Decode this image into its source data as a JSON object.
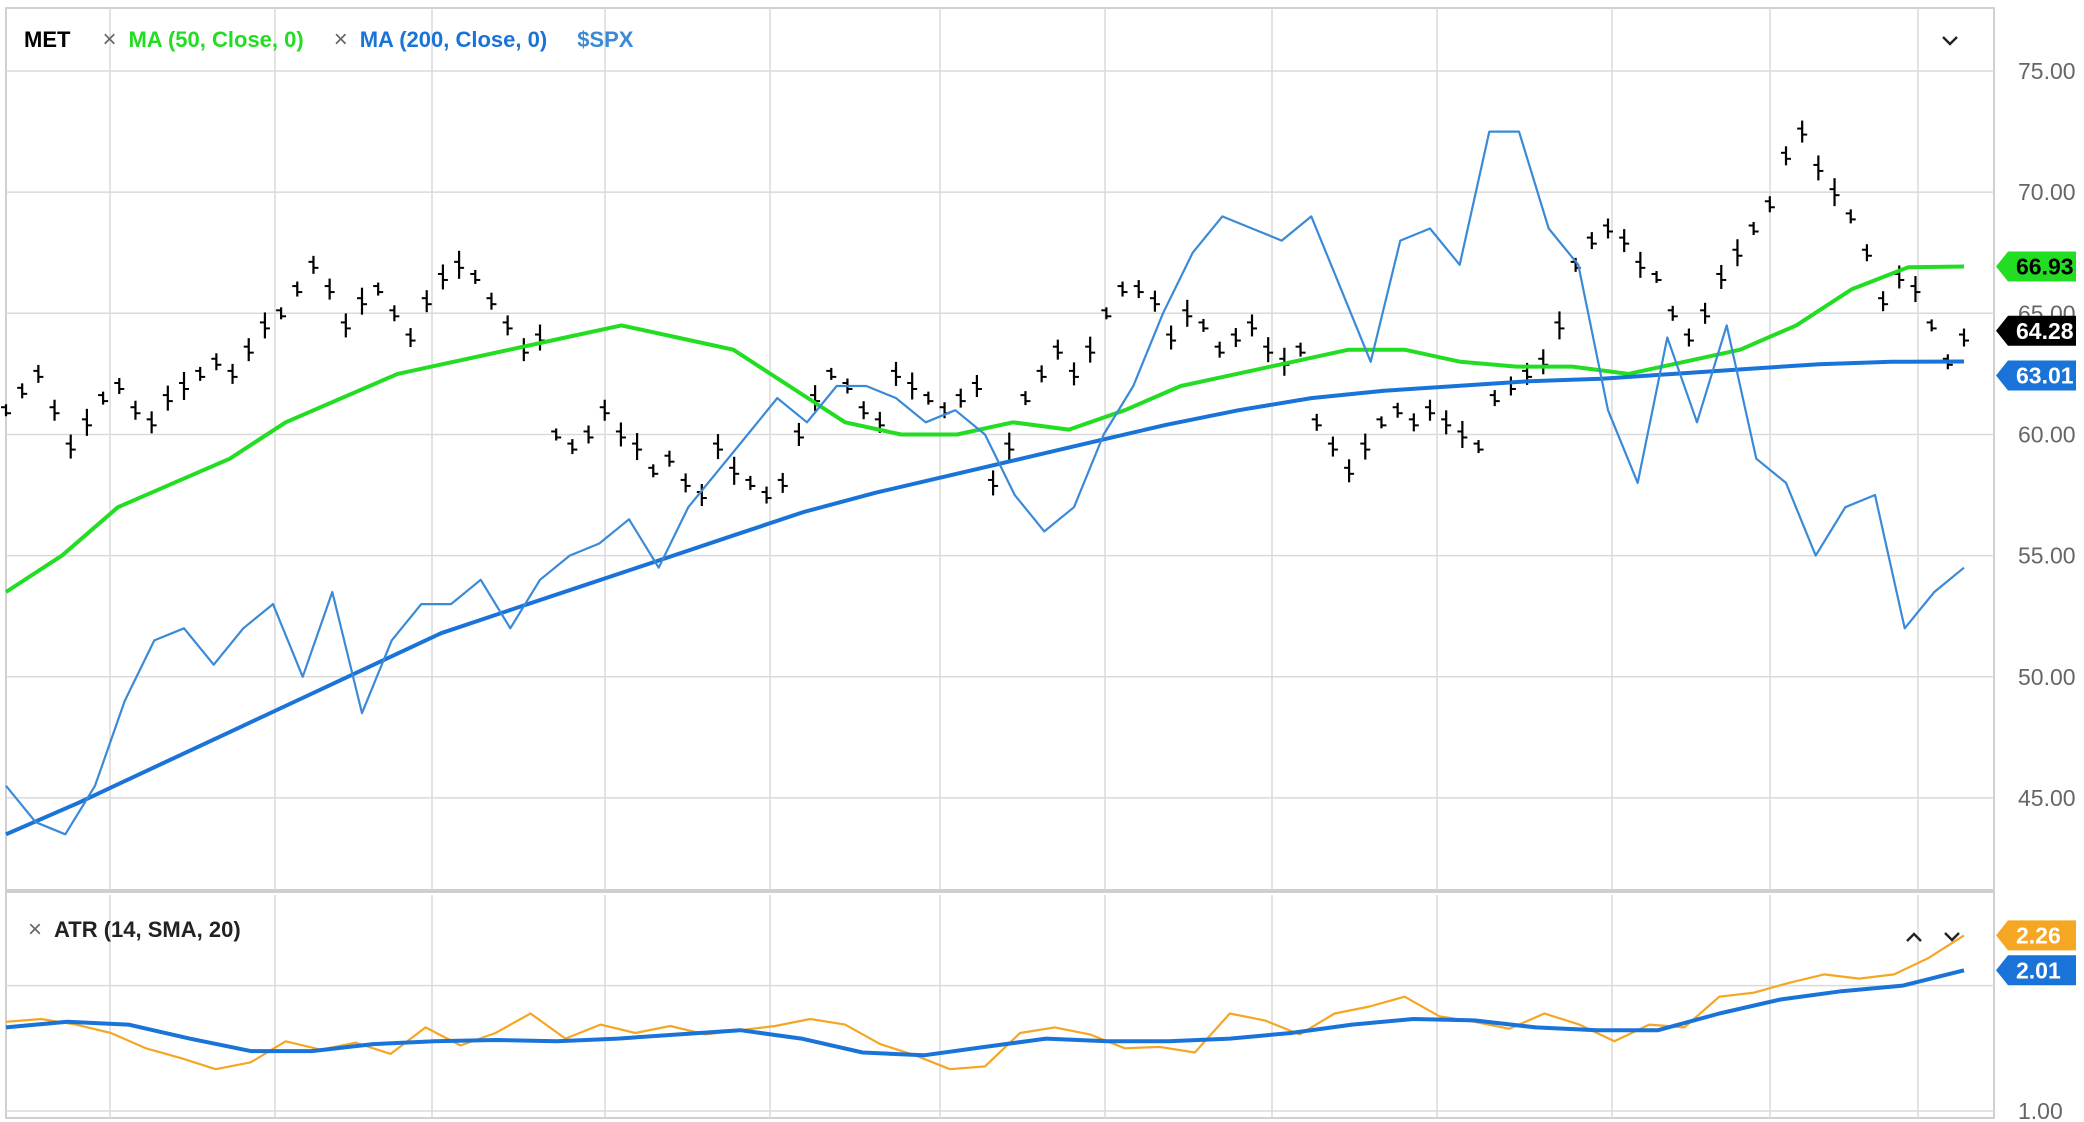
{
  "main_panel": {
    "symbol": "MET",
    "indicators": [
      {
        "label": "MA (50, Close, 0)",
        "color": "#22dd22"
      },
      {
        "label": "MA (200, Close, 0)",
        "color": "#1a73d8"
      },
      {
        "label": "$SPX",
        "color": "#3a8ad8"
      }
    ],
    "collapse_icon": "chevron-down-icon"
  },
  "lower_panel": {
    "indicator": "ATR (14, SMA, 20)",
    "icons": [
      "chevron-up-icon",
      "chevron-down-icon"
    ]
  },
  "chart_data": [
    {
      "type": "ohlc",
      "title": "MET",
      "y_ticks": [
        "75.00",
        "70.00",
        "65.00",
        "60.00",
        "55.00",
        "50.00",
        "45.00"
      ],
      "ylim": [
        41.2,
        77.6
      ],
      "grid": true,
      "series": [
        {
          "name": "MET",
          "color": "#000000",
          "values": [
            61.0,
            61.8,
            62.5,
            61.0,
            59.5,
            60.5,
            61.5,
            62.0,
            61.0,
            60.5,
            61.5,
            62.0,
            62.5,
            63.0,
            62.5,
            63.5,
            64.5,
            65.0,
            66.0,
            67.0,
            66.0,
            64.5,
            65.5,
            66.0,
            65.0,
            64.0,
            65.5,
            66.5,
            67.0,
            66.5,
            65.5,
            64.5,
            63.5,
            64.0,
            60.0,
            59.5,
            60.0,
            61.0,
            60.0,
            59.5,
            58.5,
            59.0,
            58.0,
            57.5,
            59.5,
            58.5,
            58.0,
            57.5,
            58.0,
            60.0,
            61.5,
            62.5,
            62.0,
            61.0,
            60.5,
            62.5,
            62.0,
            61.5,
            61.0,
            61.5,
            62.0,
            58.0,
            59.5,
            61.5,
            62.5,
            63.5,
            62.5,
            63.5,
            65.0,
            66.0,
            66.0,
            65.5,
            64.0,
            65.0,
            64.5,
            63.5,
            64.0,
            64.5,
            63.5,
            63.0,
            63.5,
            60.5,
            59.5,
            58.5,
            59.5,
            60.5,
            61.0,
            60.5,
            61.0,
            60.5,
            60.0,
            59.5,
            61.5,
            62.0,
            62.5,
            63.0,
            64.5,
            67.0,
            68.0,
            68.5,
            68.0,
            67.0,
            66.5,
            65.0,
            64.0,
            65.0,
            66.5,
            67.5,
            68.5,
            69.5,
            71.5,
            72.5,
            71.0,
            70.0,
            69.0,
            67.5,
            65.5,
            66.5,
            66.0,
            64.5,
            63.0,
            64.0
          ]
        },
        {
          "name": "MA (50, Close, 0)",
          "color": "#22dd22",
          "values": [
            53.5,
            55.0,
            57.0,
            58.0,
            59.0,
            60.5,
            61.5,
            62.5,
            63.0,
            63.5,
            64.0,
            64.5,
            64.0,
            63.5,
            62.0,
            60.5,
            60.0,
            60.0,
            60.5,
            60.2,
            61.0,
            62.0,
            62.5,
            63.0,
            63.5,
            63.5,
            63.0,
            62.8,
            62.8,
            62.5,
            63.0,
            63.5,
            64.5,
            66.0,
            66.9,
            66.93
          ]
        },
        {
          "name": "MA (200, Close, 0)",
          "color": "#1a73d8",
          "values": [
            43.5,
            44.8,
            46.2,
            47.6,
            49.0,
            50.4,
            51.8,
            52.8,
            53.8,
            54.8,
            55.8,
            56.8,
            57.6,
            58.3,
            59.0,
            59.7,
            60.4,
            61.0,
            61.5,
            61.8,
            62.0,
            62.2,
            62.3,
            62.5,
            62.7,
            62.9,
            63.0,
            63.01
          ]
        },
        {
          "name": "$SPX",
          "color": "#3a8ad8",
          "values": [
            45.5,
            44.0,
            43.5,
            45.5,
            49.0,
            51.5,
            52.0,
            50.5,
            52.0,
            53.0,
            50.0,
            53.5,
            48.5,
            51.5,
            53.0,
            53.0,
            54.0,
            52.0,
            54.0,
            55.0,
            55.5,
            56.5,
            54.5,
            57.0,
            58.5,
            60.0,
            61.5,
            60.5,
            62.0,
            62.0,
            61.5,
            60.5,
            61.0,
            60.0,
            57.5,
            56.0,
            57.0,
            60.0,
            62.0,
            65.0,
            67.5,
            69.0,
            68.5,
            68.0,
            69.0,
            66.0,
            63.0,
            68.0,
            68.5,
            67.0,
            72.5,
            72.5,
            68.5,
            67.0,
            61.0,
            58.0,
            64.0,
            60.5,
            64.5,
            59.0,
            58.0,
            55.0,
            57.0,
            57.5,
            52.0,
            53.5,
            54.5
          ]
        }
      ],
      "last_values": [
        {
          "label": "66.93",
          "bg": "#22dd22",
          "color": "#000000"
        },
        {
          "label": "64.28",
          "bg": "#000000",
          "color": "#ffffff"
        },
        {
          "label": "63.01",
          "bg": "#1a73d8",
          "color": "#ffffff"
        }
      ]
    },
    {
      "type": "line",
      "title": "ATR (14, SMA, 20)",
      "y_ticks": [
        "1.00"
      ],
      "ylim": [
        0.95,
        2.55
      ],
      "grid": true,
      "series": [
        {
          "name": "ATR",
          "color": "#f5a623",
          "values": [
            1.64,
            1.66,
            1.62,
            1.56,
            1.45,
            1.38,
            1.3,
            1.35,
            1.5,
            1.44,
            1.49,
            1.41,
            1.6,
            1.47,
            1.56,
            1.7,
            1.52,
            1.62,
            1.56,
            1.61,
            1.55,
            1.58,
            1.61,
            1.66,
            1.62,
            1.48,
            1.4,
            1.3,
            1.32,
            1.56,
            1.6,
            1.55,
            1.45,
            1.46,
            1.42,
            1.7,
            1.65,
            1.55,
            1.7,
            1.75,
            1.82,
            1.68,
            1.64,
            1.59,
            1.7,
            1.62,
            1.5,
            1.62,
            1.6,
            1.82,
            1.85,
            1.92,
            1.98,
            1.95,
            1.98,
            2.1,
            2.26
          ]
        },
        {
          "name": "SMA",
          "color": "#1a73d8",
          "values": [
            1.6,
            1.64,
            1.62,
            1.52,
            1.43,
            1.43,
            1.48,
            1.5,
            1.51,
            1.5,
            1.52,
            1.55,
            1.58,
            1.52,
            1.42,
            1.4,
            1.46,
            1.52,
            1.5,
            1.5,
            1.52,
            1.56,
            1.62,
            1.66,
            1.65,
            1.6,
            1.58,
            1.58,
            1.7,
            1.8,
            1.86,
            1.9,
            2.01
          ]
        }
      ],
      "last_values": [
        {
          "label": "2.26",
          "bg": "#f5a623",
          "color": "#ffffff"
        },
        {
          "label": "2.01",
          "bg": "#1a73d8",
          "color": "#ffffff"
        }
      ]
    }
  ]
}
